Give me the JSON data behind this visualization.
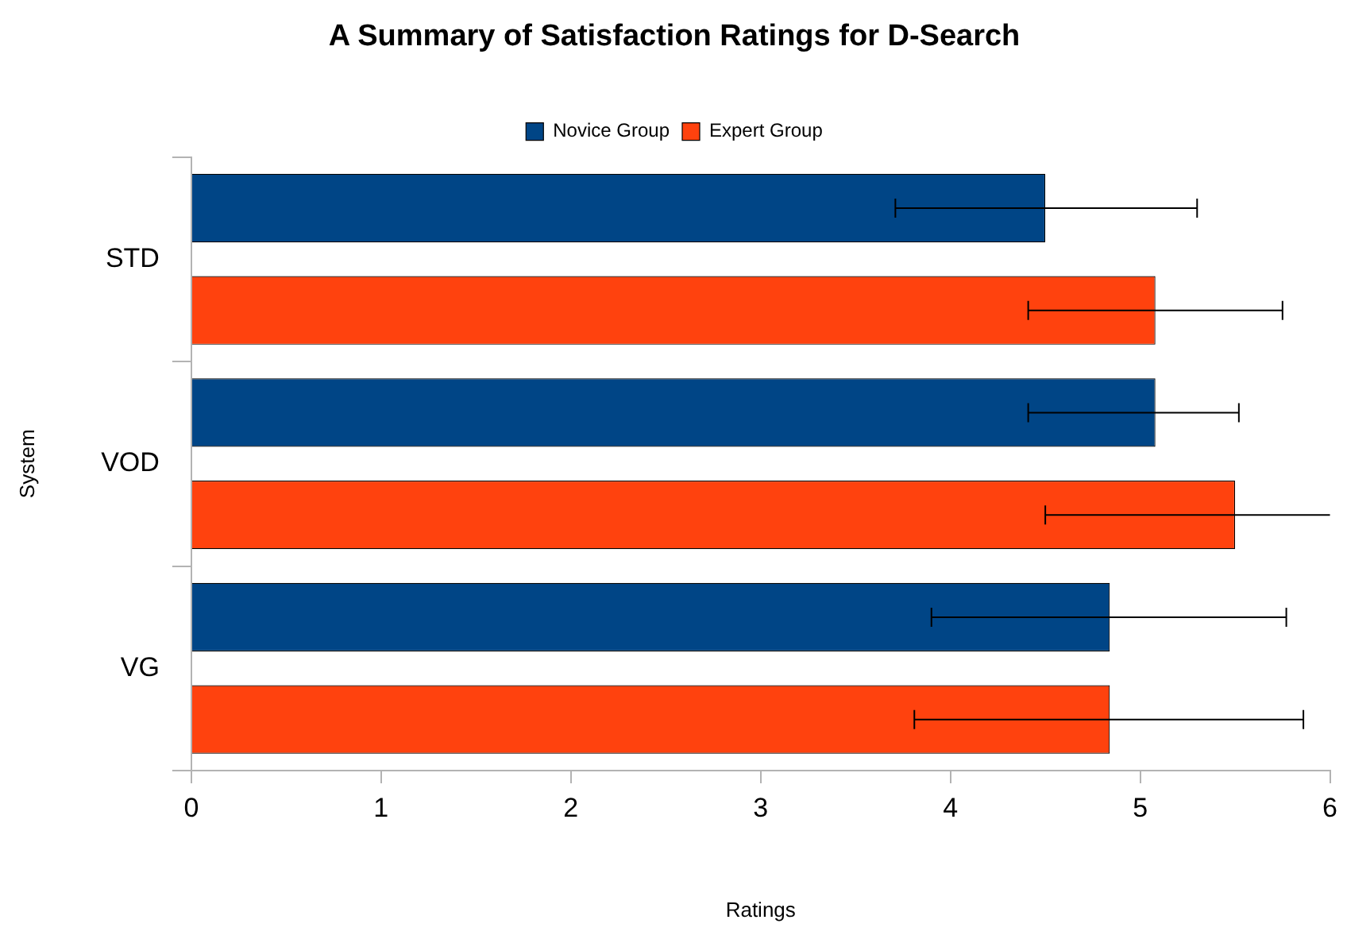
{
  "chart_data": {
    "type": "bar",
    "orientation": "horizontal",
    "title": "A Summary of Satisfaction Ratings for D-Search",
    "xlabel": "Ratings",
    "ylabel": "System",
    "categories": [
      "STD",
      "VOD",
      "VG"
    ],
    "series": [
      {
        "name": "Novice Group",
        "color": "#004586",
        "values": [
          4.5,
          5.08,
          4.84
        ],
        "errors": [
          [
            3.71,
            5.3
          ],
          [
            4.41,
            5.52
          ],
          [
            3.9,
            5.77
          ]
        ]
      },
      {
        "name": "Expert Group",
        "color": "#ff420e",
        "values": [
          5.08,
          5.5,
          4.84
        ],
        "errors": [
          [
            4.41,
            5.75
          ],
          [
            4.5,
            6
          ],
          [
            3.81,
            5.86
          ]
        ]
      }
    ],
    "xlim": [
      0,
      6
    ],
    "xticks": [
      0,
      1,
      2,
      3,
      4,
      5,
      6
    ],
    "grid": false,
    "legend": "top"
  }
}
